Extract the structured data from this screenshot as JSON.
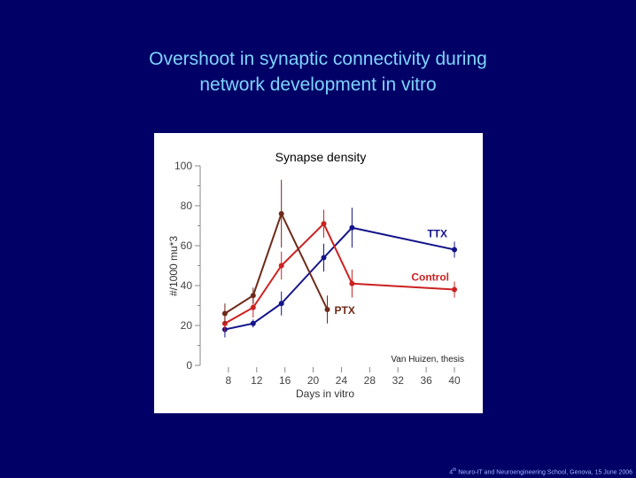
{
  "slide": {
    "title_line1": "Overshoot in synaptic connectivity during",
    "title_line2": "network development in vitro",
    "footer_sup": "th",
    "footer_text": " Neuro-IT and Neuroengineering School, Genova, 15 June 2006",
    "footer_prefix": "4"
  },
  "chart_data": {
    "type": "line",
    "title": "Synapse density",
    "xlabel": "Days in vitro",
    "ylabel": "#/1000 mu*3",
    "xticks": [
      8,
      12,
      16,
      20,
      24,
      28,
      32,
      36,
      40
    ],
    "yticks": [
      0,
      20,
      40,
      60,
      80,
      100
    ],
    "xlim": [
      4,
      41
    ],
    "ylim": [
      0,
      100
    ],
    "annotation": "Van Huizen, thesis",
    "series": [
      {
        "name": "TTX",
        "color": "#14148c",
        "x": [
          7.5,
          11.5,
          15.5,
          21.5,
          25.5,
          40
        ],
        "y": [
          18,
          21,
          31,
          54,
          69,
          58
        ],
        "err": [
          4,
          2,
          6,
          7,
          10,
          4
        ]
      },
      {
        "name": "Control",
        "color": "#cc2222",
        "x": [
          7.5,
          11.5,
          15.5,
          21.5,
          25.5,
          40
        ],
        "y": [
          21,
          29,
          50,
          71,
          41,
          38
        ],
        "err": [
          4,
          5,
          7,
          7,
          7,
          4
        ]
      },
      {
        "name": "PTX",
        "color": "#6e2a1a",
        "x": [
          7.5,
          11.5,
          15.5,
          22
        ],
        "y": [
          26,
          35,
          76,
          28
        ],
        "err": [
          5,
          4,
          17,
          7
        ]
      }
    ]
  }
}
